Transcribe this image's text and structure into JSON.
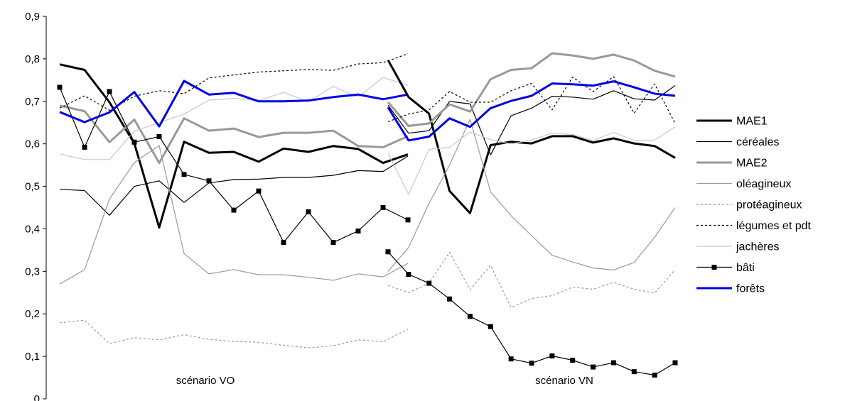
{
  "chart_data": {
    "type": "line",
    "ylim": [
      0,
      0.9
    ],
    "yticks": [
      "0",
      "0,1",
      "0,2",
      "0,3",
      "0,4",
      "0,5",
      "0,6",
      "0,7",
      "0,8",
      "0,9"
    ],
    "grid": false,
    "legend_position": "right",
    "panels": [
      {
        "label": "scénario VO",
        "series": [
          {
            "name": "MAE1",
            "values": [
              0.787,
              0.774,
              0.698,
              0.601,
              0.403,
              0.605,
              0.579,
              0.581,
              0.558,
              0.589,
              0.581,
              0.595,
              0.588,
              0.555,
              0.575
            ]
          },
          {
            "name": "céréales",
            "values": [
              0.493,
              0.49,
              0.432,
              0.5,
              0.513,
              0.462,
              0.508,
              0.516,
              0.517,
              0.521,
              0.521,
              0.526,
              0.537,
              0.535,
              0.571
            ]
          },
          {
            "name": "MAE2",
            "values": [
              0.69,
              0.677,
              0.604,
              0.657,
              0.555,
              0.66,
              0.631,
              0.636,
              0.616,
              0.626,
              0.626,
              0.631,
              0.595,
              0.592,
              0.618
            ]
          },
          {
            "name": "oléagineux",
            "values": [
              0.27,
              0.304,
              0.47,
              0.556,
              0.596,
              0.342,
              0.294,
              0.304,
              0.292,
              0.292,
              0.286,
              0.279,
              0.294,
              0.287,
              0.319
            ]
          },
          {
            "name": "protéagineux",
            "values": [
              0.179,
              0.185,
              0.13,
              0.144,
              0.139,
              0.151,
              0.14,
              0.135,
              0.133,
              0.126,
              0.12,
              0.125,
              0.139,
              0.134,
              0.164
            ]
          },
          {
            "name": "légumes et pdt",
            "values": [
              0.684,
              0.713,
              0.679,
              0.712,
              0.725,
              0.718,
              0.755,
              0.762,
              0.769,
              0.772,
              0.775,
              0.773,
              0.788,
              0.791,
              0.812
            ]
          },
          {
            "name": "jachères",
            "values": [
              0.576,
              0.563,
              0.563,
              0.63,
              0.65,
              0.67,
              0.703,
              0.707,
              0.702,
              0.721,
              0.699,
              0.735,
              0.71,
              0.756,
              0.738
            ]
          },
          {
            "name": "bâti",
            "values": [
              0.733,
              0.592,
              0.723,
              0.604,
              0.617,
              0.528,
              0.513,
              0.444,
              0.489,
              0.368,
              0.44,
              0.368,
              0.395,
              0.45,
              0.421
            ]
          },
          {
            "name": "forêts",
            "values": [
              0.675,
              0.651,
              0.674,
              0.722,
              0.641,
              0.748,
              0.716,
              0.72,
              0.7,
              0.7,
              0.702,
              0.71,
              0.716,
              0.705,
              0.716
            ]
          }
        ]
      },
      {
        "label": "scénario VN",
        "series": [
          {
            "name": "MAE1",
            "values": [
              0.797,
              0.71,
              0.671,
              0.489,
              0.437,
              0.597,
              0.605,
              0.601,
              0.618,
              0.618,
              0.603,
              0.613,
              0.601,
              0.595,
              0.567
            ]
          },
          {
            "name": "céréales",
            "values": [
              0.691,
              0.625,
              0.631,
              0.7,
              0.694,
              0.574,
              0.666,
              0.684,
              0.712,
              0.71,
              0.705,
              0.725,
              0.706,
              0.703,
              0.737
            ]
          },
          {
            "name": "MAE2",
            "values": [
              0.698,
              0.642,
              0.648,
              0.693,
              0.676,
              0.752,
              0.774,
              0.778,
              0.813,
              0.808,
              0.8,
              0.81,
              0.796,
              0.772,
              0.758
            ]
          },
          {
            "name": "oléagineux",
            "values": [
              0.3,
              0.356,
              0.46,
              0.55,
              0.658,
              0.487,
              0.431,
              0.384,
              0.338,
              0.322,
              0.308,
              0.303,
              0.321,
              0.38,
              0.45
            ]
          },
          {
            "name": "protéagineux",
            "values": [
              0.267,
              0.25,
              0.272,
              0.345,
              0.257,
              0.314,
              0.215,
              0.236,
              0.243,
              0.263,
              0.258,
              0.274,
              0.258,
              0.249,
              0.304
            ]
          },
          {
            "name": "légumes et pdt",
            "values": [
              0.652,
              0.67,
              0.68,
              0.723,
              0.698,
              0.698,
              0.725,
              0.742,
              0.68,
              0.757,
              0.723,
              0.758,
              0.672,
              0.741,
              0.648
            ]
          },
          {
            "name": "jachères",
            "values": [
              0.578,
              0.481,
              0.587,
              0.592,
              0.628,
              0.61,
              0.6,
              0.609,
              0.625,
              0.622,
              0.608,
              0.627,
              0.608,
              0.609,
              0.64
            ]
          },
          {
            "name": "bâti",
            "values": [
              0.346,
              0.293,
              0.272,
              0.235,
              0.194,
              0.17,
              0.094,
              0.084,
              0.101,
              0.091,
              0.075,
              0.085,
              0.064,
              0.056,
              0.085
            ]
          },
          {
            "name": "forêts",
            "values": [
              0.686,
              0.608,
              0.617,
              0.66,
              0.64,
              0.684,
              0.701,
              0.713,
              0.742,
              0.74,
              0.737,
              0.747,
              0.733,
              0.718,
              0.713
            ]
          }
        ]
      }
    ],
    "styles": {
      "MAE1": {
        "color": "#000000",
        "dash": "solid",
        "marker": false
      },
      "céréales": {
        "color": "#000000",
        "dash": "solid",
        "marker": false
      },
      "MAE2": {
        "color": "#999999",
        "dash": "solid",
        "marker": false
      },
      "oléagineux": {
        "color": "#9a9a9a",
        "dash": "solid",
        "marker": false
      },
      "protéagineux": {
        "color": "#9a9a9a",
        "dash": "dashed",
        "marker": false
      },
      "légumes et pdt": {
        "color": "#000000",
        "dash": "dashed",
        "marker": false
      },
      "jachères": {
        "color": "#c8c8c8",
        "dash": "solid",
        "marker": false
      },
      "bâti": {
        "color": "#000000",
        "dash": "solid",
        "marker": true
      },
      "forêts": {
        "color": "#0000e6",
        "dash": "solid",
        "marker": false
      }
    }
  }
}
